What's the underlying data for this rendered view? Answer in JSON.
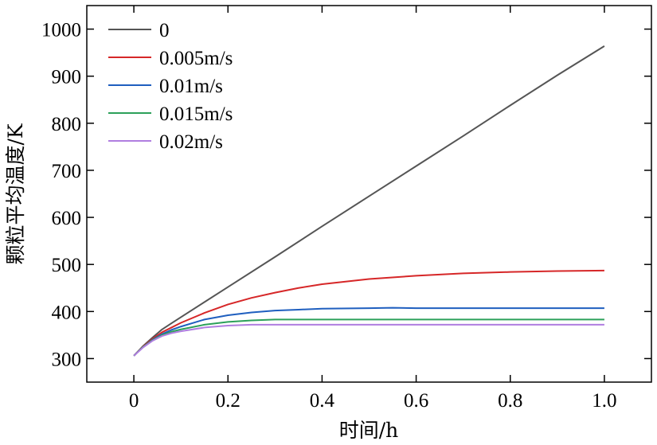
{
  "chart_data": {
    "type": "line",
    "xlabel": "时间/h",
    "ylabel": "颗粒平均温度/K",
    "xlim": [
      -0.1,
      1.1
    ],
    "ylim": [
      250,
      1050
    ],
    "xticks": [
      0,
      0.2,
      0.4,
      0.6,
      0.8,
      1.0
    ],
    "xtick_labels": [
      "0",
      "0.2",
      "0.4",
      "0.6",
      "0.8",
      "1.0"
    ],
    "yticks": [
      300,
      400,
      500,
      600,
      700,
      800,
      900,
      1000
    ],
    "ytick_labels": [
      "300",
      "400",
      "500",
      "600",
      "700",
      "800",
      "900",
      "1000"
    ],
    "grid": false,
    "legend_position": "top-left",
    "series": [
      {
        "name": "0",
        "color": "#555555",
        "x": [
          0,
          0.02,
          0.04,
          0.06,
          0.08,
          0.1,
          0.2,
          0.3,
          0.4,
          0.5,
          0.6,
          0.7,
          0.8,
          0.9,
          1.0
        ],
        "y": [
          306,
          327,
          345,
          362,
          375,
          388,
          452,
          516,
          581,
          645,
          709,
          773,
          838,
          902,
          964
        ]
      },
      {
        "name": "0.005m/s",
        "color": "#d62728",
        "x": [
          0,
          0.02,
          0.04,
          0.06,
          0.08,
          0.1,
          0.15,
          0.2,
          0.25,
          0.3,
          0.35,
          0.4,
          0.5,
          0.6,
          0.7,
          0.8,
          0.9,
          1.0
        ],
        "y": [
          306,
          326,
          342,
          356,
          366,
          376,
          397,
          415,
          429,
          440,
          450,
          458,
          469,
          476,
          481,
          484,
          486,
          487
        ]
      },
      {
        "name": "0.01m/s",
        "color": "#1f5fbf",
        "x": [
          0,
          0.02,
          0.04,
          0.06,
          0.08,
          0.1,
          0.15,
          0.2,
          0.25,
          0.3,
          0.35,
          0.4,
          0.5,
          0.55,
          0.6,
          0.8,
          1.0
        ],
        "y": [
          306,
          325,
          340,
          352,
          361,
          368,
          383,
          392,
          398,
          402,
          404,
          406,
          407,
          408,
          407,
          407,
          407
        ]
      },
      {
        "name": "0.015m/s",
        "color": "#2ca05a",
        "x": [
          0,
          0.02,
          0.04,
          0.06,
          0.08,
          0.1,
          0.15,
          0.2,
          0.25,
          0.3,
          0.4,
          0.6,
          0.8,
          1.0
        ],
        "y": [
          306,
          325,
          339,
          350,
          357,
          362,
          372,
          378,
          381,
          383,
          383,
          383,
          383,
          383
        ]
      },
      {
        "name": "0.02m/s",
        "color": "#b07ee0",
        "x": [
          0,
          0.02,
          0.04,
          0.06,
          0.08,
          0.1,
          0.15,
          0.2,
          0.25,
          0.3,
          0.4,
          0.6,
          0.8,
          1.0
        ],
        "y": [
          306,
          324,
          338,
          348,
          354,
          358,
          366,
          370,
          372,
          372,
          372,
          372,
          372,
          372
        ]
      }
    ]
  }
}
